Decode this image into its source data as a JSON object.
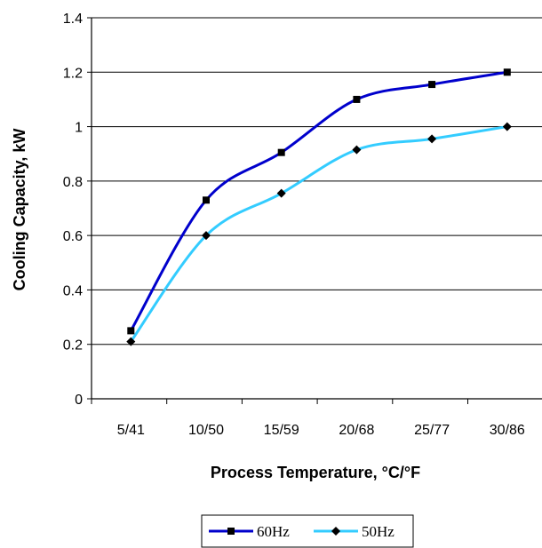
{
  "chart_data": {
    "type": "line",
    "categories": [
      "5/41",
      "10/50",
      "15/59",
      "20/68",
      "25/77",
      "30/86"
    ],
    "series": [
      {
        "name": "60Hz",
        "color": "#0000CC",
        "marker": "square",
        "values": [
          0.25,
          0.73,
          0.905,
          1.1,
          1.155,
          1.2
        ]
      },
      {
        "name": "50Hz",
        "color": "#33CCFF",
        "marker": "diamond",
        "values": [
          0.21,
          0.6,
          0.755,
          0.915,
          0.955,
          1.0
        ]
      }
    ],
    "ylim": [
      0,
      1.4
    ],
    "yticks": [
      "0",
      "0.2",
      "0.4",
      "0.6",
      "0.8",
      "1",
      "1.2",
      "1.4"
    ],
    "xlabel": "Process Temperature, °C/°F",
    "ylabel": "Cooling Capacity, kW",
    "grid": "horizontal",
    "legend": "bottom-center"
  }
}
